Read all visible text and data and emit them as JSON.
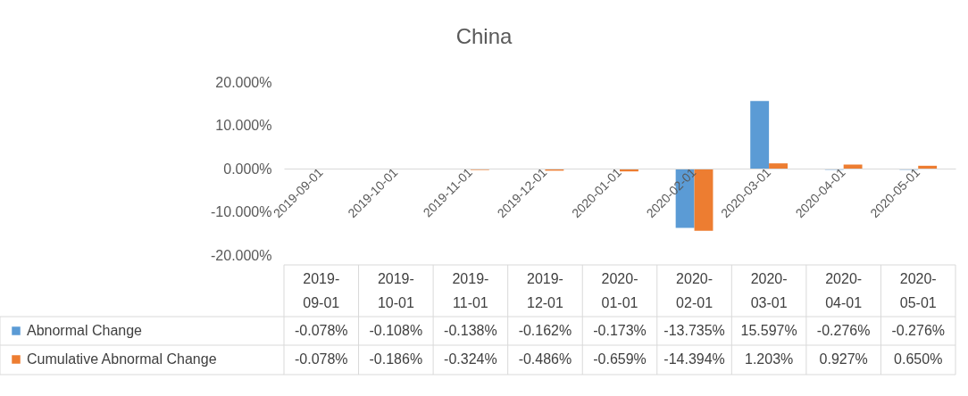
{
  "chart_data": {
    "type": "bar",
    "title": "China",
    "categories": [
      "2019-09-01",
      "2019-10-01",
      "2019-11-01",
      "2019-12-01",
      "2020-01-01",
      "2020-02-01",
      "2020-03-01",
      "2020-04-01",
      "2020-05-01"
    ],
    "series": [
      {
        "name": "Abnormal Change",
        "color": "#5b9bd5",
        "values": [
          -0.078,
          -0.108,
          -0.138,
          -0.162,
          -0.173,
          -13.735,
          15.597,
          -0.276,
          -0.276
        ],
        "value_labels": [
          "-0.078%",
          "-0.108%",
          "-0.138%",
          "-0.162%",
          "-0.173%",
          "-13.735%",
          "15.597%",
          "-0.276%",
          "-0.276%"
        ]
      },
      {
        "name": "Cumulative Abnormal Change",
        "color": "#ed7d31",
        "values": [
          -0.078,
          -0.186,
          -0.324,
          -0.486,
          -0.659,
          -14.394,
          1.203,
          0.927,
          0.65
        ],
        "value_labels": [
          "-0.078%",
          "-0.186%",
          "-0.324%",
          "-0.486%",
          "-0.659%",
          "-14.394%",
          "1.203%",
          "0.927%",
          "0.650%"
        ]
      }
    ],
    "ylim": [
      -20,
      20
    ],
    "yticks": [
      {
        "value": -20,
        "label": "-20.000%"
      },
      {
        "value": -10,
        "label": "-10.000%"
      },
      {
        "value": 0,
        "label": "0.000%"
      },
      {
        "value": 10,
        "label": "10.000%"
      },
      {
        "value": 20,
        "label": "20.000%"
      }
    ],
    "legend": "bottom"
  }
}
